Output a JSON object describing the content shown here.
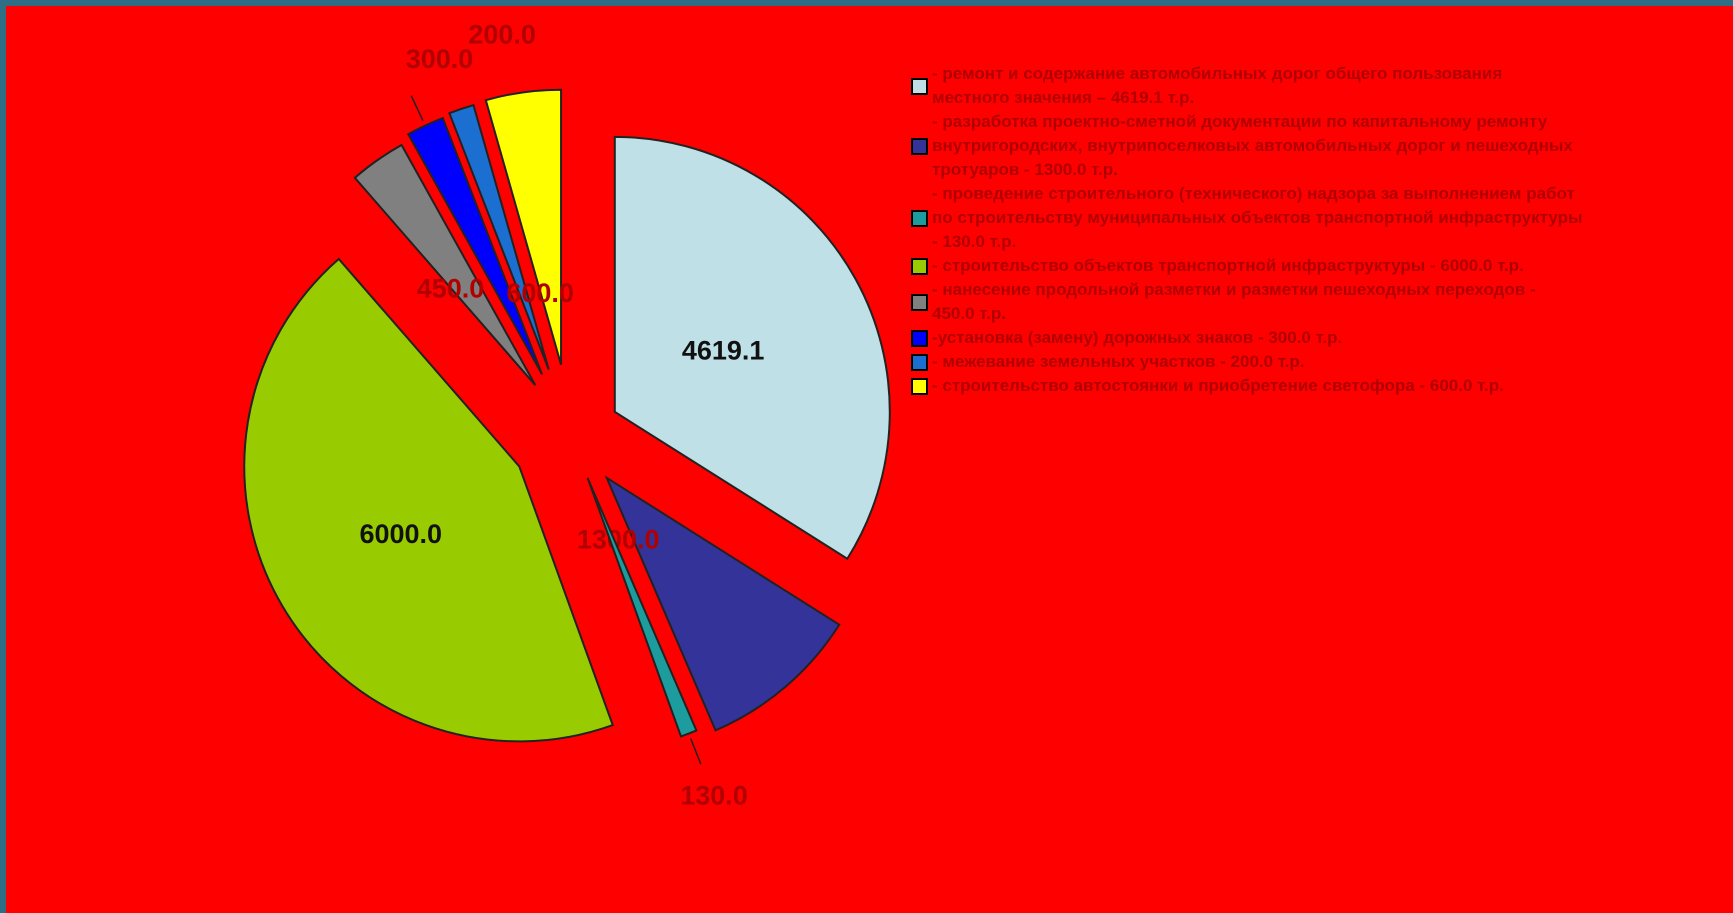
{
  "chart_data": {
    "type": "pie",
    "exploded": true,
    "background": "#ff0000",
    "slices": [
      {
        "value": 4619.1,
        "label": "4619.1",
        "color": "#bfe0e6",
        "legend": "- ремонт и содержание автомобильных дорог общего пользования\nместного значения – 4619.1 т.р."
      },
      {
        "value": 1300.0,
        "label": "1300.0",
        "color": "#333399",
        "legend": "- разработка проектно-сметной документации по капитальному ремонту\nвнутригородских, внутрипоселковых автомобильных дорог и пешеходных\nтротуаров - 1300.0 т.р."
      },
      {
        "value": 130.0,
        "label": "130.0",
        "color": "#1c9c9c",
        "legend": "- проведение строительного (технического) надзора за выполнением работ\nпо строительству муниципальных объектов транспортной инфраструктуры\n- 130.0 т.р."
      },
      {
        "value": 6000.0,
        "label": "6000.0",
        "color": "#99cc00",
        "legend": "- строительство объектов транспортной инфраструктуры - 6000.0 т.р."
      },
      {
        "value": 450.0,
        "label": "450.0",
        "color": "#808080",
        "legend": "- нанесение продольной разметки и разметки пешеходных переходов -\n450.0 т.р."
      },
      {
        "value": 300.0,
        "label": "300.0",
        "color": "#0000ff",
        "legend": "-установка (замену) дорожных знаков - 300.0 т.р."
      },
      {
        "value": 200.0,
        "label": "200.0",
        "color": "#1a6fd0",
        "legend": "- межевание земельных участков - 200.0 т.р."
      },
      {
        "value": 600.0,
        "label": "600.0",
        "color": "#ffff00",
        "legend": "- строительство автостоянки и приобретение светофора - 600.0 т.р."
      }
    ]
  }
}
